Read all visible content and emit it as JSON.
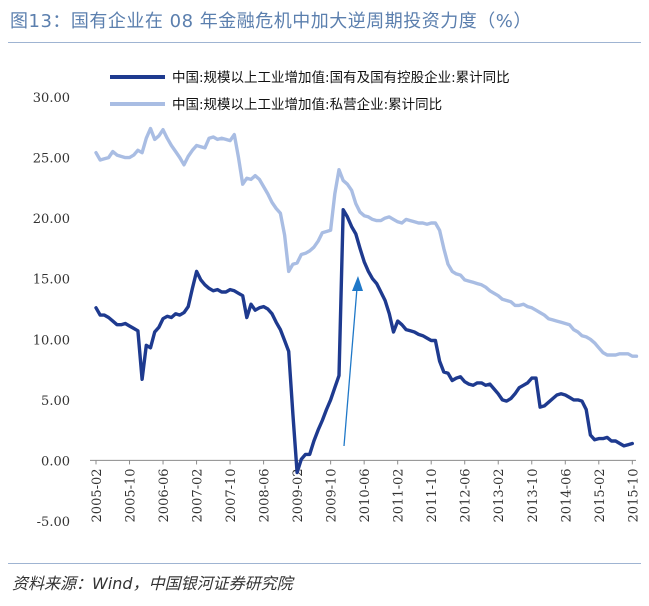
{
  "header": {
    "title": "图13：国有企业在 08 年金融危机中加大逆周期投资力度（%）"
  },
  "footer": {
    "source": "资料来源：Wind，中国银河证券研究院"
  },
  "colors": {
    "state_series": "#1e3a8f",
    "private_series": "#a9bde3",
    "arrow": "#1f78c8",
    "title": "#5b7fae"
  },
  "chart_data": {
    "type": "line",
    "title": "",
    "xlabel": "",
    "ylabel": "",
    "ylim": [
      -5,
      30
    ],
    "yticks": [
      "30.00",
      "25.00",
      "20.00",
      "15.00",
      "10.00",
      "5.00",
      "0.00",
      "-5.00"
    ],
    "xticks": [
      "2005-02",
      "2005-10",
      "2006-06",
      "2007-02",
      "2007-10",
      "2008-06",
      "2009-02",
      "2009-10",
      "2010-06",
      "2011-02",
      "2011-10",
      "2012-06",
      "2013-02",
      "2013-10",
      "2014-06",
      "2015-02",
      "2015-10"
    ],
    "x_start": "2005-02",
    "x_step_months": 1,
    "legend_position": "top",
    "series": [
      {
        "name": "中国:规模以上工业增加值:国有及国有控股企业:累计同比",
        "values": [
          12.6,
          12.0,
          12.0,
          11.8,
          11.5,
          11.2,
          11.2,
          11.3,
          11.1,
          10.9,
          10.7,
          6.7,
          9.5,
          9.3,
          10.6,
          11.0,
          11.7,
          11.9,
          11.8,
          12.1,
          12.0,
          12.2,
          12.7,
          14.2,
          15.6,
          14.9,
          14.5,
          14.2,
          14.0,
          14.1,
          13.9,
          13.9,
          14.1,
          14.0,
          13.8,
          13.6,
          11.8,
          12.9,
          12.4,
          12.6,
          12.7,
          12.5,
          12.1,
          11.4,
          10.8,
          9.9,
          9.0,
          3.8,
          -1.0,
          0.1,
          0.5,
          0.5,
          1.6,
          2.5,
          3.3,
          4.2,
          5.0,
          6.0,
          7.0,
          20.7,
          20.1,
          19.3,
          18.7,
          17.5,
          16.4,
          15.6,
          15.0,
          14.6,
          13.9,
          13.2,
          12.1,
          10.6,
          11.5,
          11.2,
          10.8,
          10.7,
          10.6,
          10.4,
          10.3,
          10.1,
          9.9,
          9.9,
          8.2,
          7.3,
          7.2,
          6.6,
          6.8,
          6.9,
          6.5,
          6.3,
          6.2,
          6.4,
          6.4,
          6.2,
          6.3,
          5.9,
          5.5,
          5.0,
          4.9,
          5.1,
          5.5,
          6.0,
          6.2,
          6.4,
          6.8,
          6.8,
          4.4,
          4.5,
          4.8,
          5.1,
          5.4,
          5.5,
          5.4,
          5.2,
          5.0,
          5.0,
          4.9,
          4.2,
          2.1,
          1.7,
          1.8,
          1.8,
          1.9,
          1.6,
          1.6,
          1.4,
          1.2,
          1.3,
          1.4
        ]
      },
      {
        "name": "中国:规模以上工业增加值:私营企业:累计同比",
        "values": [
          25.4,
          24.8,
          24.9,
          25.0,
          25.5,
          25.2,
          25.1,
          25.0,
          25.0,
          25.2,
          25.6,
          25.4,
          26.6,
          27.4,
          26.5,
          26.8,
          27.3,
          26.6,
          26.0,
          25.5,
          25.0,
          24.4,
          25.1,
          25.6,
          26.0,
          25.9,
          25.8,
          26.6,
          26.7,
          26.5,
          26.6,
          26.5,
          26.4,
          26.9,
          25.0,
          22.8,
          23.3,
          23.2,
          23.5,
          23.2,
          22.6,
          22.0,
          21.3,
          20.8,
          20.4,
          18.6,
          15.6,
          16.2,
          16.3,
          17.0,
          17.1,
          17.3,
          17.6,
          18.1,
          18.8,
          18.9,
          19.0,
          22.0,
          24.0,
          23.1,
          22.8,
          22.3,
          21.2,
          20.5,
          20.2,
          20.1,
          19.9,
          19.8,
          19.8,
          20.0,
          20.1,
          19.9,
          19.7,
          19.6,
          19.9,
          19.8,
          19.7,
          19.6,
          19.6,
          19.5,
          19.6,
          19.6,
          19.0,
          17.5,
          16.2,
          15.6,
          15.4,
          15.3,
          14.9,
          14.8,
          14.7,
          14.6,
          14.5,
          14.3,
          14.0,
          13.8,
          13.6,
          13.3,
          13.2,
          13.1,
          12.8,
          12.8,
          12.9,
          12.7,
          12.6,
          12.4,
          12.2,
          12.0,
          11.7,
          11.6,
          11.5,
          11.4,
          11.3,
          11.2,
          10.8,
          10.6,
          10.3,
          10.2,
          10.0,
          9.7,
          9.3,
          8.9,
          8.7,
          8.7,
          8.7,
          8.8,
          8.8,
          8.8,
          8.6,
          8.6
        ]
      }
    ],
    "annotation": "upward arrow marking the post-crisis rebound of state-owned enterprises"
  }
}
